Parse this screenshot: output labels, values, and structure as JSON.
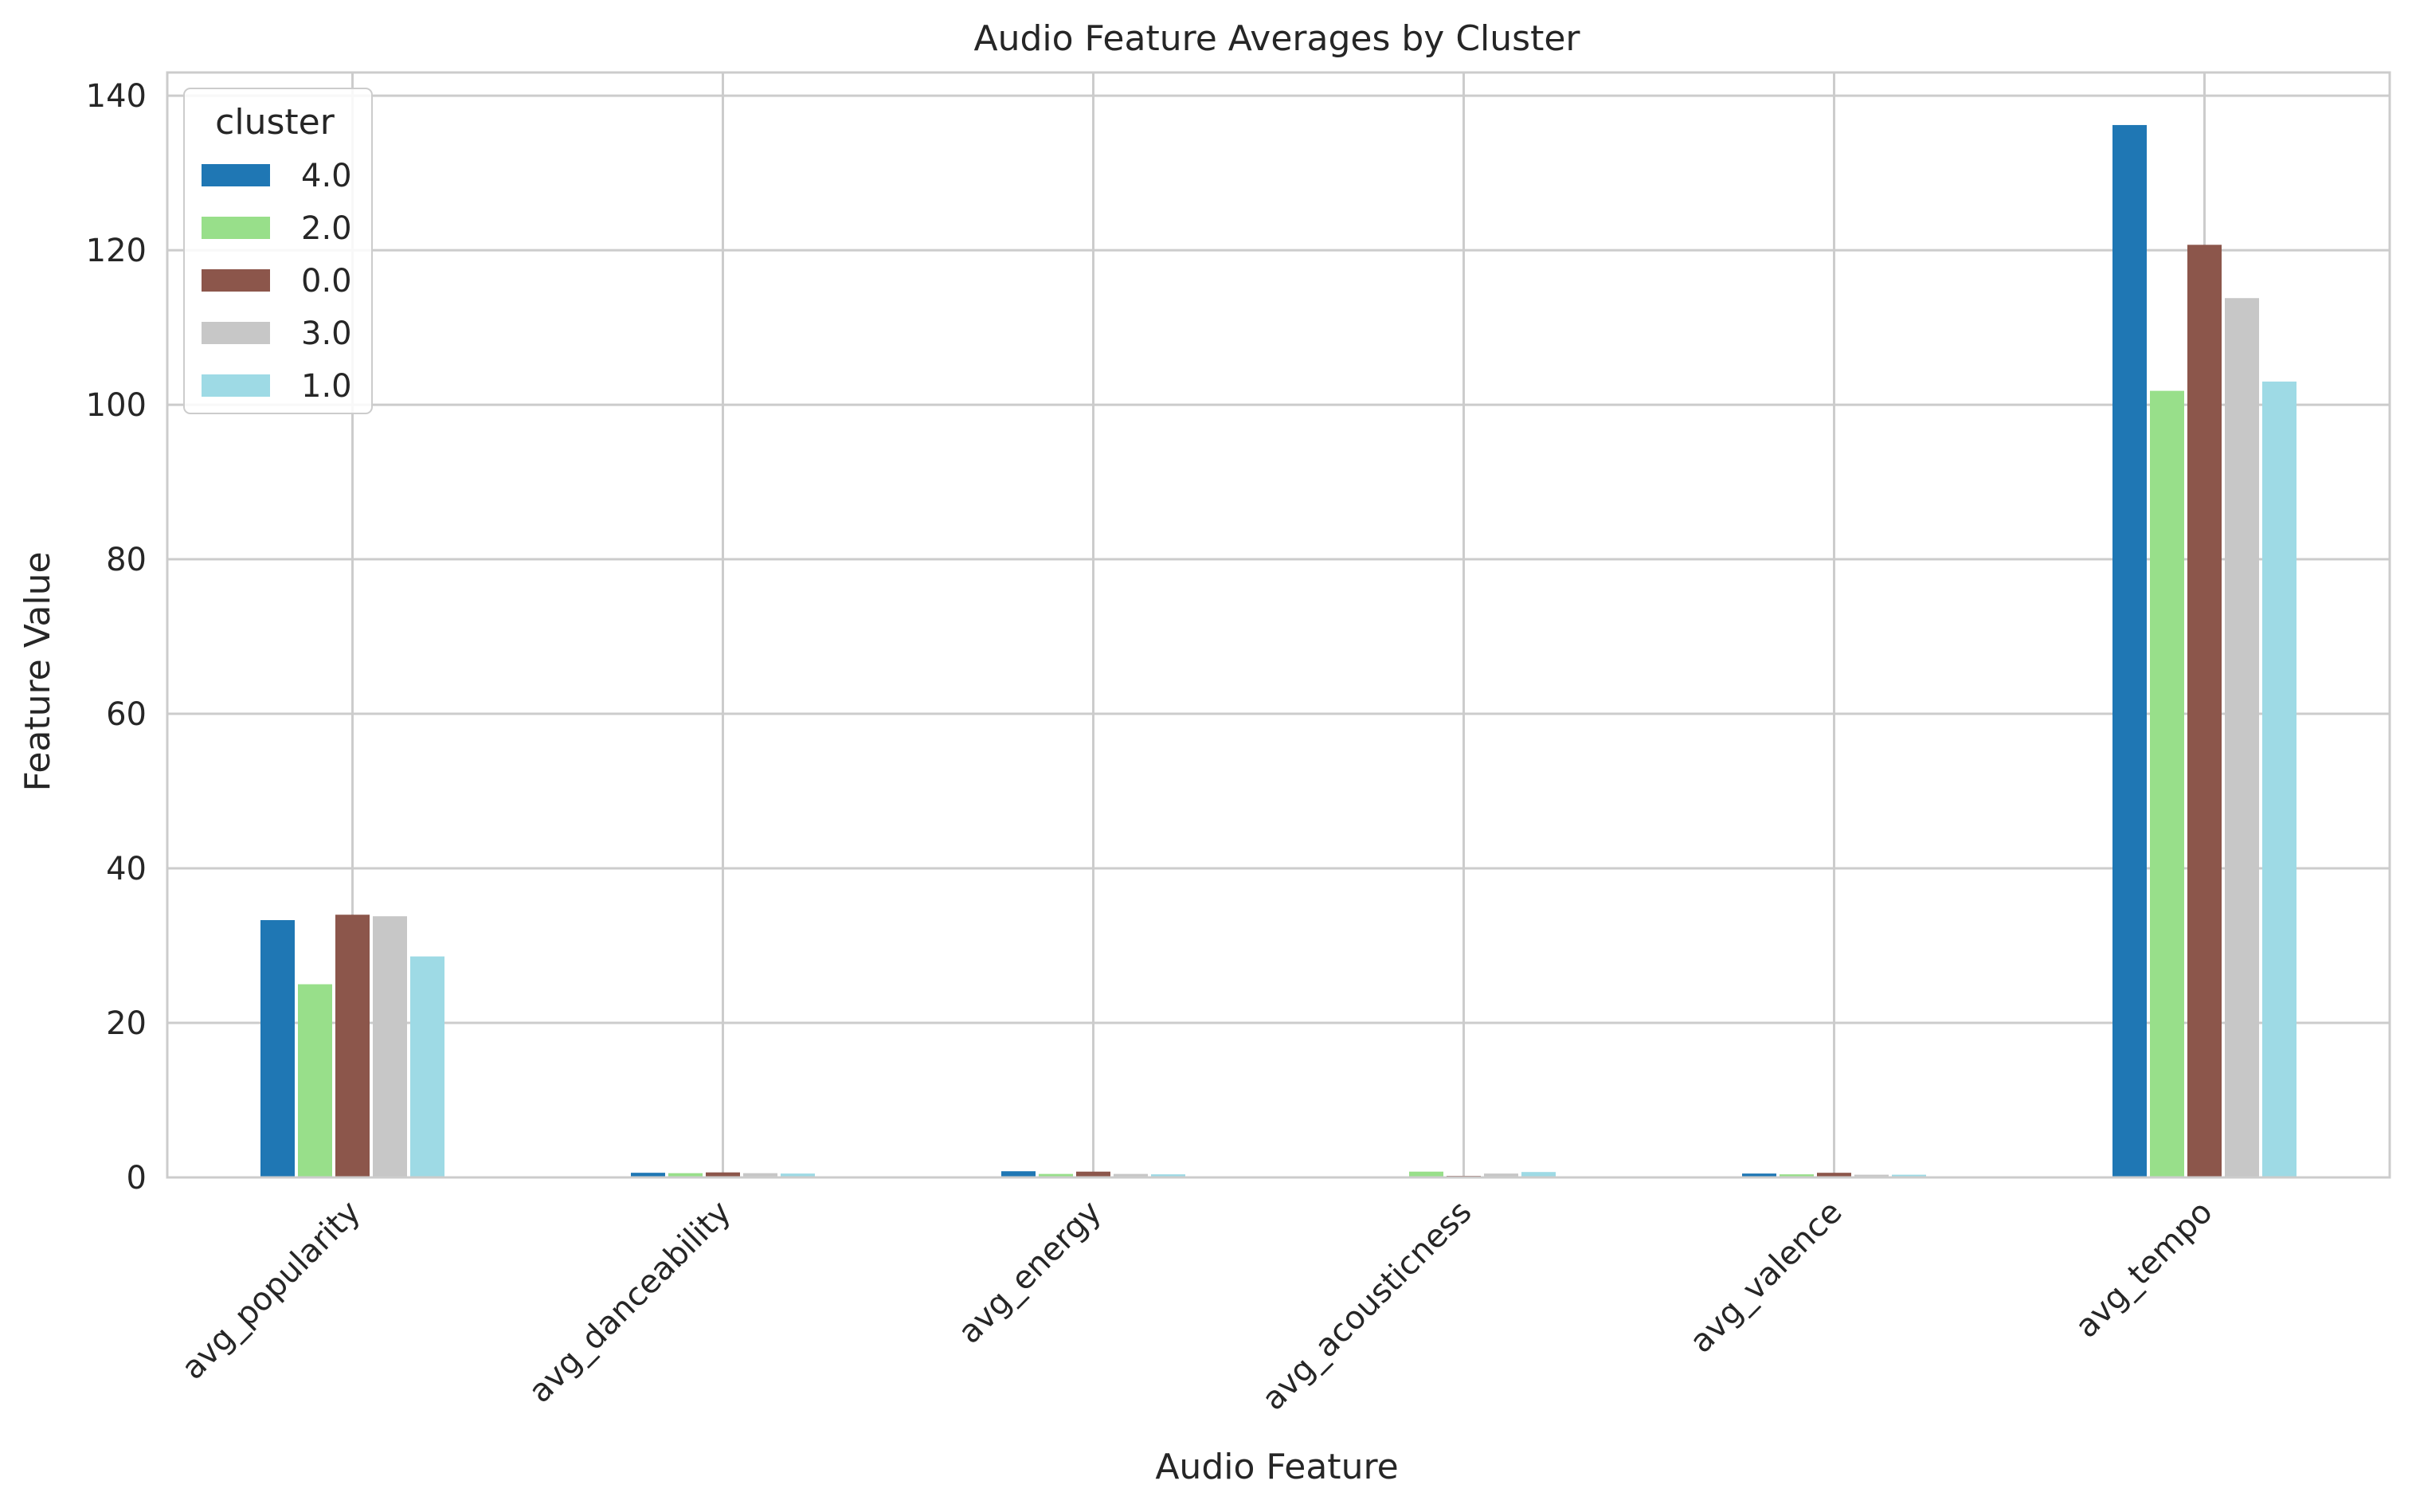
{
  "chart_data": {
    "type": "bar",
    "title": "Audio Feature Averages by Cluster",
    "xlabel": "Audio Feature",
    "ylabel": "Feature Value",
    "ylim": [
      0,
      143
    ],
    "yticks": [
      "0",
      "20",
      "40",
      "60",
      "80",
      "100",
      "120",
      "140"
    ],
    "grid": true,
    "legend": {
      "title": "cluster",
      "placement": "top-left"
    },
    "categories": [
      "avg_popularity",
      "avg_danceability",
      "avg_energy",
      "avg_acousticness",
      "avg_valence",
      "avg_tempo"
    ],
    "series": [
      {
        "name": "4.0",
        "color": "#1f77b4",
        "values": [
          33.3,
          0.6,
          0.8,
          0.15,
          0.5,
          136.2
        ]
      },
      {
        "name": "2.0",
        "color": "#98df8a",
        "values": [
          25.0,
          0.55,
          0.45,
          0.75,
          0.4,
          101.8
        ]
      },
      {
        "name": "0.0",
        "color": "#8c564b",
        "values": [
          34.0,
          0.65,
          0.75,
          0.2,
          0.6,
          120.7
        ]
      },
      {
        "name": "3.0",
        "color": "#c7c7c7",
        "values": [
          33.8,
          0.55,
          0.45,
          0.5,
          0.35,
          113.8
        ]
      },
      {
        "name": "1.0",
        "color": "#9edae5",
        "values": [
          28.6,
          0.5,
          0.4,
          0.7,
          0.35,
          103.0
        ]
      }
    ]
  }
}
